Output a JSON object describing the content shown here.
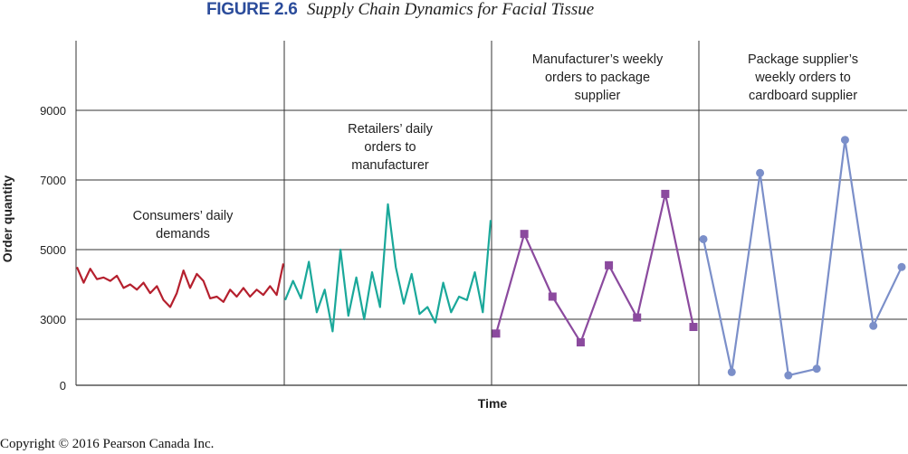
{
  "figure": {
    "number": "FIGURE 2.6",
    "title": "Supply Chain Dynamics for Facial Tissue"
  },
  "copyright": "Copyright © 2016 Pearson Canada Inc.",
  "colors": {
    "consumers": "#b5202e",
    "retailers": "#1aa89a",
    "manufacturer": "#8b4a9e",
    "supplier": "#7b8fc9",
    "header": "#2b4c9b",
    "grid": "#333333"
  },
  "chart_data": {
    "type": "line",
    "xlabel": "Time",
    "ylabel": "Order quantity",
    "y_ticks": [
      0,
      3000,
      5000,
      7000,
      9000
    ],
    "y_range": [
      0,
      11000
    ],
    "grid": true,
    "panels": [
      {
        "key": "consumers",
        "label": [
          "Consumers’ daily",
          "demands"
        ],
        "marker": "none",
        "values": [
          4500,
          4050,
          4450,
          4150,
          4200,
          4100,
          4250,
          3900,
          4000,
          3850,
          4050,
          3750,
          3950,
          3550,
          3350,
          3750,
          4400,
          3900,
          4300,
          4100,
          3600,
          3650,
          3500,
          3850,
          3650,
          3900,
          3650,
          3850,
          3700,
          3950,
          3700,
          4600
        ]
      },
      {
        "key": "retailers",
        "label": [
          "Retailers’ daily",
          "orders to",
          "manufacturer"
        ],
        "marker": "none",
        "values": [
          3550,
          4100,
          3600,
          4650,
          3200,
          3850,
          2450,
          5000,
          3100,
          4200,
          3000,
          4350,
          3350,
          6300,
          4500,
          3450,
          4300,
          3150,
          3350,
          2850,
          4050,
          3200,
          3650,
          3550,
          4350,
          3200,
          5850
        ]
      },
      {
        "key": "manufacturer",
        "label": [
          "Manufacturer’s weekly",
          "orders to package",
          "supplier"
        ],
        "marker": "square",
        "values": [
          2350,
          5450,
          3650,
          1950,
          4550,
          3050,
          6600,
          2650
        ]
      },
      {
        "key": "supplier",
        "label": [
          "Package supplier’s",
          "weekly orders to",
          "cardboard supplier"
        ],
        "marker": "circle",
        "values": [
          5300,
          600,
          7200,
          450,
          750,
          8150,
          2700,
          4500
        ]
      }
    ]
  }
}
